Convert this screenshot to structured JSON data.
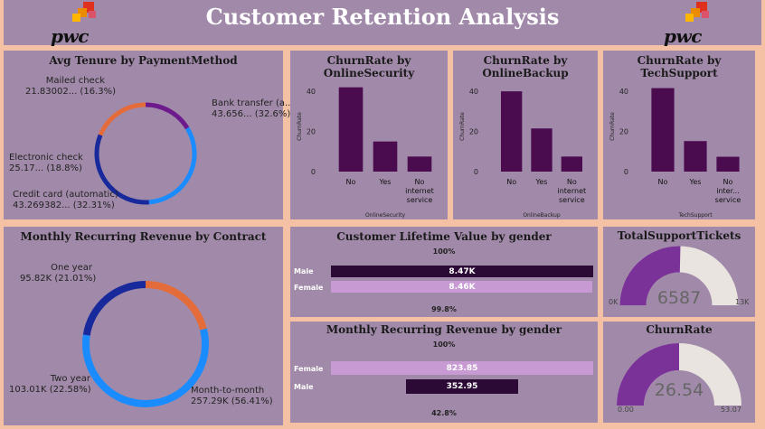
{
  "header": {
    "title": "Customer Retention Analysis",
    "logo_text": "pwc"
  },
  "colors": {
    "bar": "#4a0b4f",
    "mailed": "#6d1a8c",
    "bank": "#1a8cff",
    "electronic": "#e46c3a",
    "credit": "#17299b",
    "one_year": "#e46c3a",
    "two_year": "#17299b",
    "m2m": "#1a8cff",
    "male_bar": "#2b0a36",
    "female_bar": "#c79ad3",
    "gauge_fill": "#7a3198",
    "gauge_empty": "#e9e4df"
  },
  "tenure": {
    "title": "Avg Tenure by PaymentMethod",
    "slices": [
      {
        "name": "Mailed check",
        "value": 16.3,
        "label1": "Mailed check",
        "label2": "21.83002... (16.3%)"
      },
      {
        "name": "Bank transfer (automatic)",
        "value": 32.6,
        "label1": "Bank transfer (a...",
        "label2": "43.656... (32.6%)"
      },
      {
        "name": "Credit card (automatic)",
        "value": 32.31,
        "label1": "Credit card (automatic)",
        "label2": "43.269382... (32.31%)"
      },
      {
        "name": "Electronic check",
        "value": 18.8,
        "label1": "Electronic check",
        "label2": "25.17... (18.8%)"
      }
    ]
  },
  "mrr_contract": {
    "title": "Monthly Recurring Revenue by Contract",
    "slices": [
      {
        "name": "One year",
        "value": 21.01,
        "label1": "One year",
        "label2": "95.82K (21.01%)"
      },
      {
        "name": "Month-to-month",
        "value": 56.41,
        "label1": "Month-to-month",
        "label2": "257.29K (56.41%)"
      },
      {
        "name": "Two year",
        "value": 22.58,
        "label1": "Two year",
        "label2": "103.01K (22.58%)"
      }
    ]
  },
  "chart_data": [
    {
      "type": "bar",
      "title": "ChurnRate by OnlineSecurity",
      "xlabel": "OnlineSecurity",
      "ylabel": "ChurnRate",
      "categories": [
        "No",
        "Yes",
        "No internet service"
      ],
      "values": [
        42,
        15,
        7.5
      ],
      "ylim": [
        0,
        45
      ],
      "yticks": [
        0,
        20,
        40
      ]
    },
    {
      "type": "bar",
      "title": "ChurnRate by OnlineBackup",
      "xlabel": "OnlineBackup",
      "ylabel": "ChurnRate",
      "categories": [
        "No",
        "Yes",
        "No internet service"
      ],
      "values": [
        40,
        21.5,
        7.5
      ],
      "ylim": [
        0,
        45
      ],
      "yticks": [
        0,
        20,
        40
      ]
    },
    {
      "type": "bar",
      "title": "ChurnRate by TechSupport",
      "xlabel": "TechSupport",
      "ylabel": "ChurnRate",
      "categories": [
        "No",
        "Yes",
        "No inter... service"
      ],
      "values": [
        41.6,
        15.2,
        7.4
      ],
      "ylim": [
        0,
        45
      ],
      "yticks": [
        0,
        20,
        40
      ]
    }
  ],
  "clv_gender": {
    "title": "Customer Lifetime Value by gender",
    "top_pct": "100%",
    "bottom_pct": "99.8%",
    "rows": [
      {
        "label": "Male",
        "value": "8.47K",
        "fraction": 1.0
      },
      {
        "label": "Female",
        "value": "8.46K",
        "fraction": 0.998
      }
    ]
  },
  "mrr_gender": {
    "title": "Monthly Recurring Revenue by gender",
    "top_pct": "100%",
    "bottom_pct": "42.8%",
    "rows": [
      {
        "label": "Female",
        "value": "823.85",
        "fraction": 1.0
      },
      {
        "label": "Male",
        "value": "352.95",
        "fraction": 0.428
      }
    ]
  },
  "tickets": {
    "title": "TotalSupportTickets",
    "value": "6587",
    "min": "0K",
    "max": "13K",
    "fraction": 0.507
  },
  "churn": {
    "title": "ChurnRate",
    "value": "26.54",
    "min": "0.00",
    "max": "53.07",
    "fraction": 0.5
  }
}
